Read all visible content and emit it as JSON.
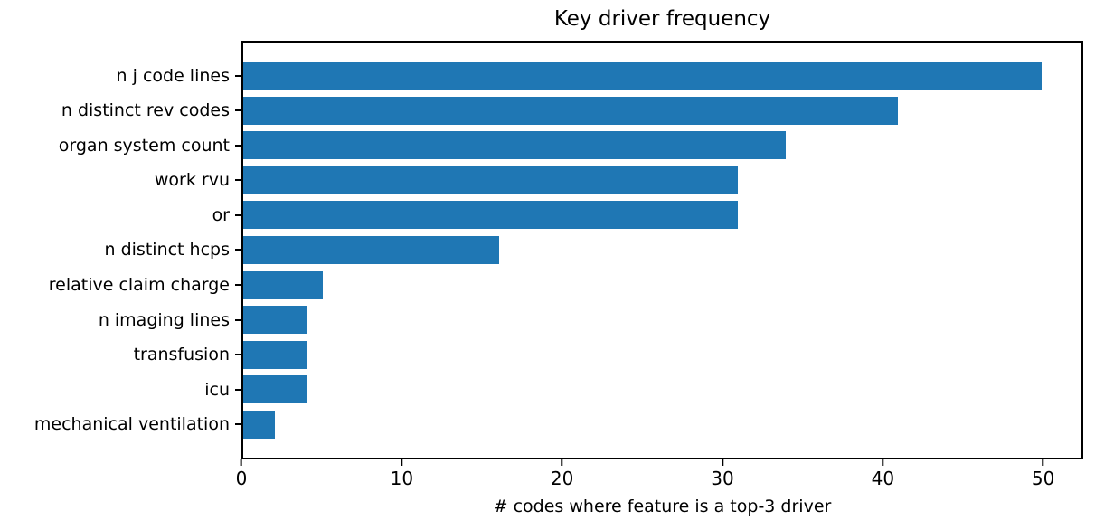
{
  "chart_data": {
    "type": "bar",
    "orientation": "horizontal",
    "title": "Key driver frequency",
    "xlabel": "# codes where feature is a top-3 driver",
    "ylabel": "",
    "categories": [
      "n j code lines",
      "n distinct rev codes",
      "organ system count",
      "work rvu",
      "or",
      "n distinct hcps",
      "relative claim charge",
      "n imaging lines",
      "transfusion",
      "icu",
      "mechanical ventilation"
    ],
    "values": [
      50,
      41,
      34,
      31,
      31,
      16,
      5,
      4,
      4,
      4,
      2
    ],
    "xticks": [
      "0",
      "10",
      "20",
      "30",
      "40",
      "50"
    ],
    "xlim": [
      0,
      52.5
    ],
    "grid": false,
    "legend": null,
    "bar_color": "#1f77b4",
    "axis_color": "#000000",
    "text_color": "#000000",
    "background_color": "#ffffff"
  }
}
